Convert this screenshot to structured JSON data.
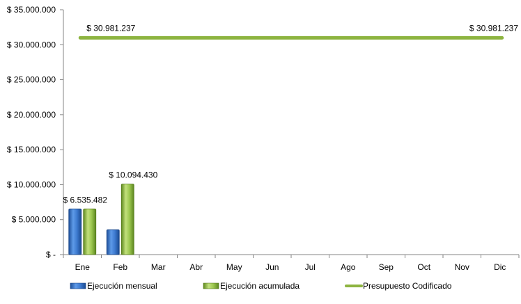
{
  "chart_data": {
    "type": "bar",
    "title": "",
    "xlabel": "",
    "ylabel": "",
    "categories": [
      "Ene",
      "Feb",
      "Mar",
      "Abr",
      "May",
      "Jun",
      "Jul",
      "Ago",
      "Sep",
      "Oct",
      "Nov",
      "Dic"
    ],
    "ylim": [
      0,
      35000000
    ],
    "yticks": [
      {
        "value": 35000000,
        "label": "$ 35.000.000"
      },
      {
        "value": 30000000,
        "label": "$ 30.000.000"
      },
      {
        "value": 25000000,
        "label": "$ 25.000.000"
      },
      {
        "value": 20000000,
        "label": "$ 20.000.000"
      },
      {
        "value": 15000000,
        "label": "$ 15.000.000"
      },
      {
        "value": 10000000,
        "label": "$ 10.000.000"
      },
      {
        "value": 5000000,
        "label": "$ 5.000.000"
      },
      {
        "value": 0,
        "label": "$ -"
      }
    ],
    "grid": false,
    "legend_position": "bottom",
    "series": [
      {
        "name": "Ejecución mensual",
        "kind": "bar",
        "color": "#2e6fc4",
        "values": [
          6535482,
          3558948,
          null,
          null,
          null,
          null,
          null,
          null,
          null,
          null,
          null,
          null
        ]
      },
      {
        "name": "Ejecución acumulada",
        "kind": "bar",
        "color": "#8ab83a",
        "values": [
          6535482,
          10094430,
          null,
          null,
          null,
          null,
          null,
          null,
          null,
          null,
          null,
          null
        ]
      },
      {
        "name": "Presupuesto Codificado",
        "kind": "line",
        "color": "#8db440",
        "values": [
          30981237,
          30981237,
          30981237,
          30981237,
          30981237,
          30981237,
          30981237,
          30981237,
          30981237,
          30981237,
          30981237,
          30981237
        ]
      }
    ],
    "annotations": [
      {
        "series": 1,
        "index": 0,
        "text": "$ 6.535.482"
      },
      {
        "series": 1,
        "index": 1,
        "text": "$ 10.094.430"
      },
      {
        "series": 2,
        "index": 0,
        "text": "$ 30.981.237"
      },
      {
        "series": 2,
        "index": 11,
        "text": "$ 30.981.237"
      }
    ]
  }
}
